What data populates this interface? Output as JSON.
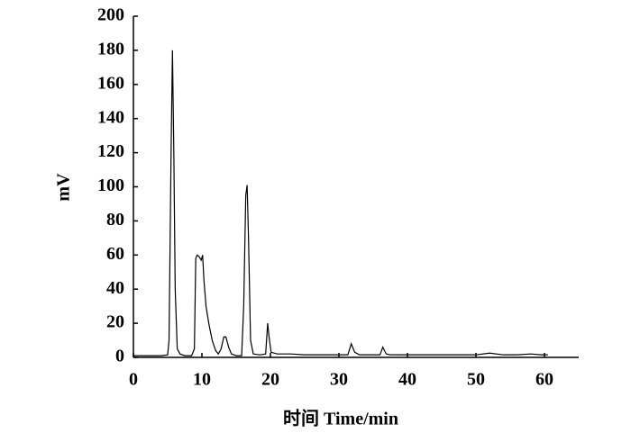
{
  "chart_data": {
    "type": "line",
    "xlabel": "时间 Time/min",
    "ylabel": "mV",
    "x": [
      0,
      1,
      2,
      3,
      4,
      5,
      5.2,
      5.5,
      5.7,
      5.9,
      6.1,
      6.4,
      6.8,
      7.5,
      8.5,
      8.9,
      9.1,
      9.3,
      9.6,
      9.9,
      10.1,
      10.3,
      10.6,
      11.0,
      11.5,
      12.0,
      12.4,
      12.8,
      13.2,
      13.5,
      13.9,
      14.3,
      15,
      15.8,
      16.1,
      16.4,
      16.6,
      16.8,
      17.1,
      17.5,
      18.5,
      19.3,
      19.6,
      19.8,
      20.1,
      21,
      23,
      25,
      28,
      30,
      31.3,
      31.8,
      32.3,
      33,
      35,
      36.0,
      36.4,
      36.9,
      37.5,
      40,
      45,
      50,
      52,
      54,
      56,
      58,
      59.5,
      60.5
    ],
    "series": [
      {
        "color": "#000000",
        "values": [
          1,
          1,
          1,
          1,
          1,
          1.5,
          10,
          120,
          180,
          120,
          40,
          5,
          2,
          1,
          1,
          5,
          58,
          60,
          59,
          57,
          60,
          45,
          30,
          20,
          10,
          4,
          2,
          5,
          12,
          12,
          6,
          2,
          1,
          1,
          30,
          95,
          101,
          70,
          10,
          2,
          1.5,
          2,
          20,
          12,
          3,
          2,
          2,
          1.5,
          1.5,
          1.5,
          1.5,
          8,
          3,
          1.5,
          1.5,
          1.5,
          6,
          2,
          1.5,
          1.5,
          1.5,
          1.5,
          2.5,
          1.5,
          1.5,
          2,
          1.5,
          1.5
        ]
      }
    ],
    "xlim": [
      0,
      65
    ],
    "xticks": [
      0,
      10,
      20,
      30,
      40,
      50,
      60
    ],
    "ylim": [
      0,
      200
    ],
    "yticks": [
      0,
      20,
      40,
      60,
      80,
      100,
      120,
      140,
      160,
      180,
      200
    ]
  }
}
